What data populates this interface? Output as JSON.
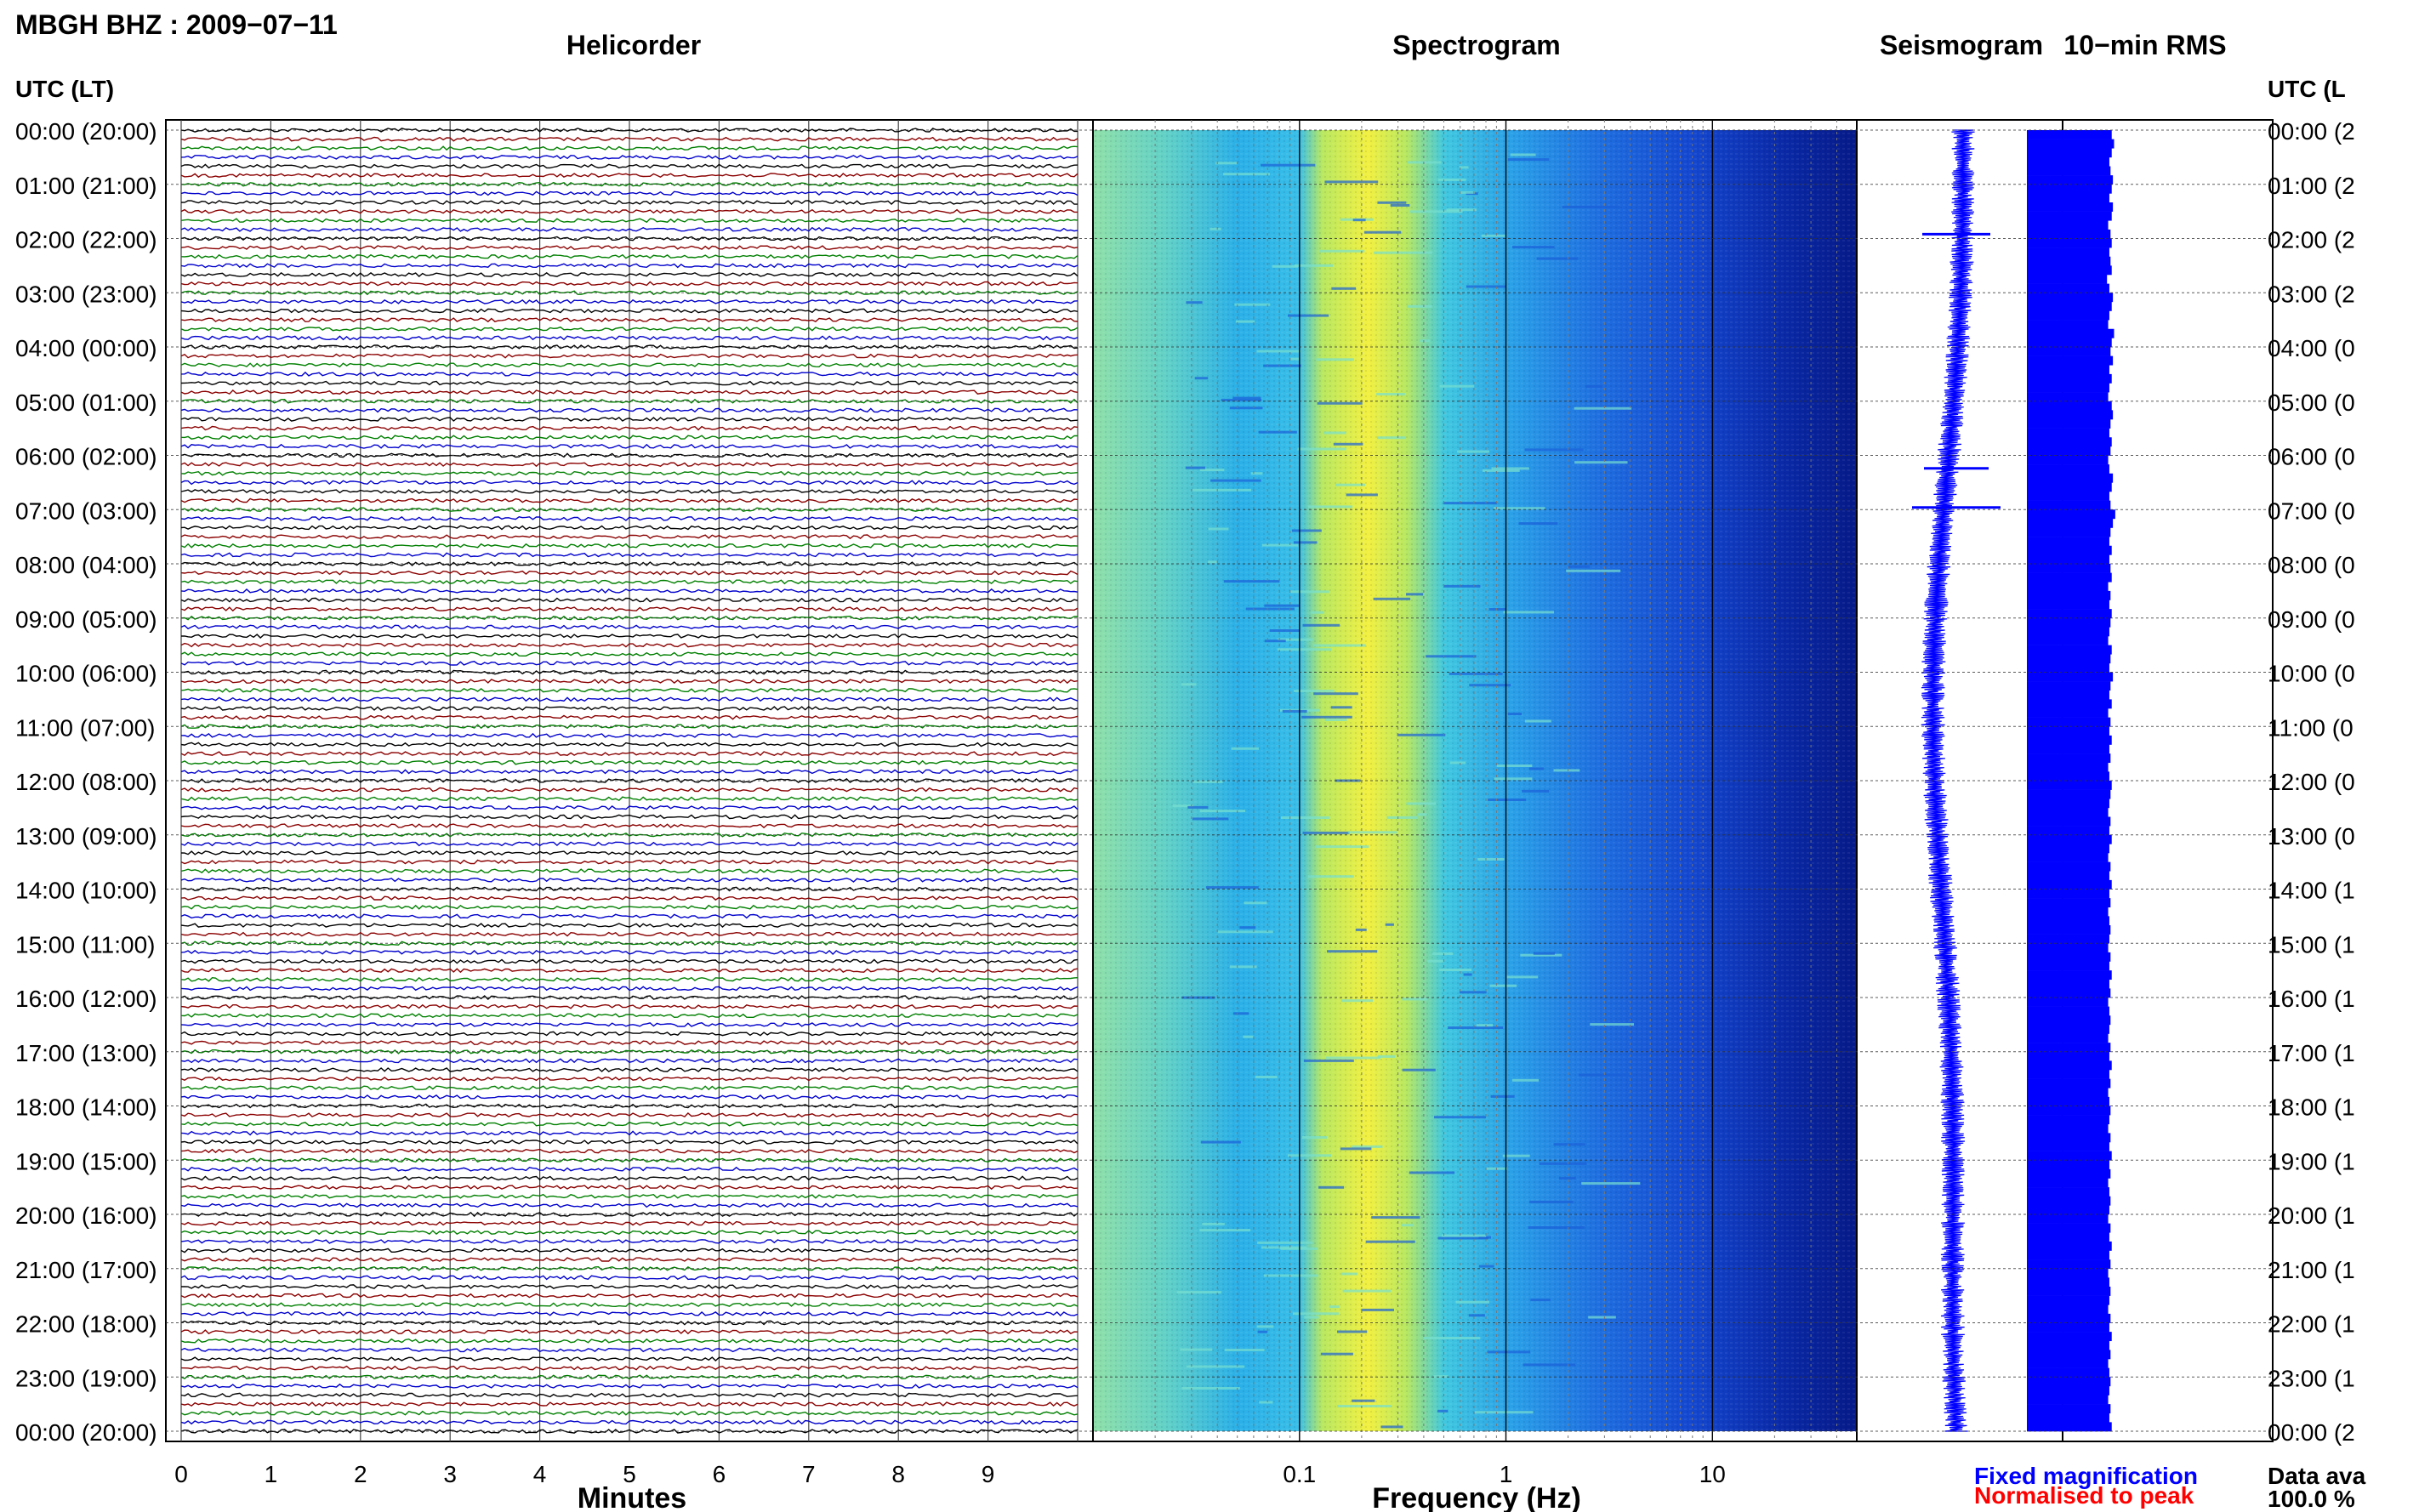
{
  "header": {
    "station_title": "MBGH BHZ : 2009−07−11"
  },
  "panels": {
    "helicorder_title": "Helicorder",
    "spectrogram_title": "Spectrogram",
    "seismogram_title": "Seismogram",
    "rms_title": "10−min RMS"
  },
  "axes": {
    "left_header": "UTC (LT)",
    "right_header": "UTC (L",
    "time_labels": [
      "00:00 (20:00)",
      "01:00 (21:00)",
      "02:00 (22:00)",
      "03:00 (23:00)",
      "04:00 (00:00)",
      "05:00 (01:00)",
      "06:00 (02:00)",
      "07:00 (03:00)",
      "08:00 (04:00)",
      "09:00 (05:00)",
      "10:00 (06:00)",
      "11:00 (07:00)",
      "12:00 (08:00)",
      "13:00 (09:00)",
      "14:00 (10:00)",
      "15:00 (11:00)",
      "16:00 (12:00)",
      "17:00 (13:00)",
      "18:00 (14:00)",
      "19:00 (15:00)",
      "20:00 (16:00)",
      "21:00 (17:00)",
      "22:00 (18:00)",
      "23:00 (19:00)",
      "00:00 (20:00)"
    ],
    "right_time_labels": [
      "00:00 (2",
      "01:00 (2",
      "02:00 (2",
      "03:00 (2",
      "04:00 (0",
      "05:00 (0",
      "06:00 (0",
      "07:00 (0",
      "08:00 (0",
      "09:00 (0",
      "10:00 (0",
      "11:00 (0",
      "12:00 (0",
      "13:00 (0",
      "14:00 (1",
      "15:00 (1",
      "16:00 (1",
      "17:00 (1",
      "18:00 (1",
      "19:00 (1",
      "20:00 (1",
      "21:00 (1",
      "22:00 (1",
      "23:00 (1",
      "00:00 (2"
    ],
    "minutes_label": "Minutes",
    "minute_ticks": [
      "0",
      "1",
      "2",
      "3",
      "4",
      "5",
      "6",
      "7",
      "8",
      "9"
    ],
    "frequency_label": "Frequency (Hz)",
    "frequency_ticks": [
      "0.1",
      "1",
      "10"
    ]
  },
  "legend": {
    "fixed": "Fixed magnification",
    "normalised": "Normalised to peak",
    "fixed_color": "#0000ff",
    "normalised_color": "#ff0000"
  },
  "data_availability": {
    "label": "Data ava",
    "value": "100.0 %"
  },
  "colors": {
    "trace_cycle": [
      "#000000",
      "#8b0000",
      "#008000",
      "#0000cd"
    ],
    "rms_fill": "#0000ff",
    "seismogram": "#0000ff"
  },
  "chart_data": {
    "type": "heatmap",
    "helicorder": {
      "x_range_minutes": [
        0,
        10
      ],
      "hours": 24,
      "traces_per_hour": 6
    },
    "spectrogram": {
      "x_scale": "log",
      "x_range_hz": [
        0.01,
        50
      ],
      "colormap": "jet",
      "dominant_band_hz": [
        0.2,
        0.5
      ]
    },
    "rms_10min_relative": [
      0.72,
      0.74,
      0.72,
      0.7,
      0.71,
      0.73,
      0.72,
      0.7,
      0.73,
      0.72,
      0.69,
      0.71,
      0.72,
      0.7,
      0.71,
      0.72,
      0.68,
      0.7,
      0.73,
      0.72,
      0.7,
      0.69,
      0.74,
      0.72,
      0.71,
      0.73,
      0.7,
      0.72,
      0.7,
      0.69,
      0.72,
      0.73,
      0.71,
      0.7,
      0.72,
      0.71,
      0.69,
      0.7,
      0.73,
      0.72,
      0.7,
      0.71,
      0.75,
      0.73,
      0.71,
      0.7,
      0.72,
      0.7,
      0.71,
      0.72,
      0.69,
      0.71,
      0.7,
      0.72,
      0.71,
      0.7,
      0.69,
      0.72,
      0.71,
      0.7,
      0.73,
      0.71,
      0.7,
      0.72,
      0.69,
      0.71,
      0.7,
      0.72,
      0.7,
      0.71,
      0.69,
      0.7,
      0.72,
      0.71,
      0.7,
      0.69,
      0.71,
      0.7,
      0.72,
      0.7,
      0.69,
      0.71,
      0.7,
      0.72,
      0.7,
      0.71,
      0.69,
      0.7,
      0.71,
      0.7,
      0.69,
      0.71,
      0.7,
      0.72,
      0.7,
      0.71,
      0.69,
      0.7,
      0.71,
      0.7,
      0.69,
      0.71,
      0.7,
      0.72,
      0.7,
      0.71,
      0.69,
      0.7,
      0.71,
      0.7,
      0.69,
      0.71,
      0.7,
      0.72,
      0.7,
      0.71,
      0.69,
      0.7,
      0.71,
      0.7,
      0.69,
      0.71,
      0.7,
      0.72,
      0.7,
      0.71,
      0.69,
      0.7,
      0.71,
      0.7,
      0.69,
      0.71,
      0.7,
      0.72,
      0.7,
      0.71,
      0.69,
      0.7,
      0.71,
      0.7,
      0.69,
      0.71,
      0.7,
      0.72
    ]
  }
}
